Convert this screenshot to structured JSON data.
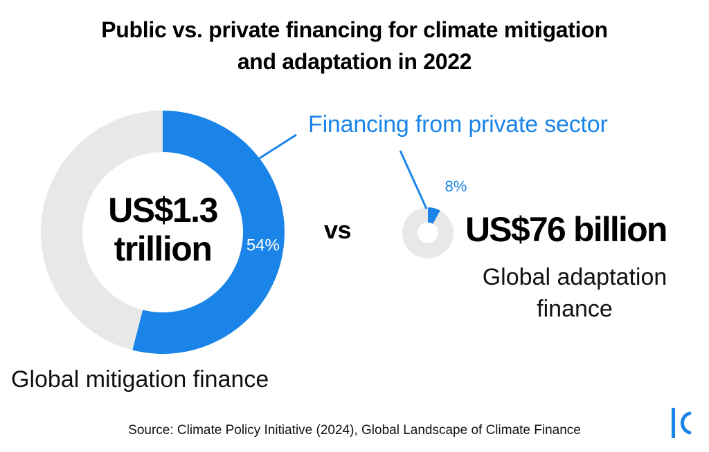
{
  "title_lines": [
    "Public vs. private financing for climate mitigation",
    "and adaptation in 2022"
  ],
  "callout": "Financing from private sector",
  "vs_label": "vs",
  "source": "Source: Climate Policy Initiative (2024), Global Landscape of Climate Finance",
  "colors": {
    "private": "#1a84e8",
    "public": "#e8e8e8",
    "label_on_blue": "#ffffff",
    "logo": "#1a84e8"
  },
  "logo_icon": "brand-logo-icon",
  "chart_data": [
    {
      "type": "pie",
      "variant": "donut",
      "total_label_lines": [
        "US$1.3",
        "trillion"
      ],
      "name": "Global mitigation finance",
      "slices": [
        {
          "name": "Financing from private sector",
          "value": 54,
          "label": "54%"
        },
        {
          "name": "",
          "value": 46,
          "label": ""
        }
      ]
    },
    {
      "type": "pie",
      "variant": "donut",
      "total_label": "US$76 billion",
      "name_lines": [
        "Global adaptation",
        "finance"
      ],
      "slices": [
        {
          "name": "Financing from private sector",
          "value": 8,
          "label": "8%"
        },
        {
          "name": "",
          "value": 92,
          "label": ""
        }
      ]
    }
  ]
}
